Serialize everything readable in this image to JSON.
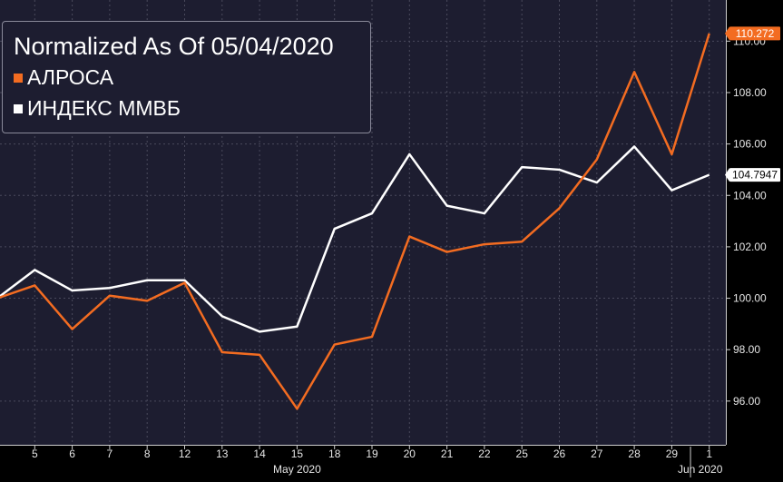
{
  "chart_data": {
    "type": "line",
    "title": "Normalized As Of 05/04/2020",
    "x": [
      "4",
      "5",
      "6",
      "7",
      "8",
      "12",
      "13",
      "14",
      "15",
      "18",
      "19",
      "20",
      "21",
      "22",
      "25",
      "26",
      "27",
      "28",
      "29",
      "1"
    ],
    "x_tick_labels": [
      "5",
      "6",
      "7",
      "8",
      "12",
      "13",
      "14",
      "15",
      "18",
      "19",
      "20",
      "21",
      "22",
      "25",
      "26",
      "27",
      "28",
      "29",
      "1"
    ],
    "month_labels": [
      "May 2020",
      "Jun 2020"
    ],
    "ylim": [
      94.3,
      111.6
    ],
    "y_ticks": [
      "96.00",
      "98.00",
      "100.00",
      "102.00",
      "104.00",
      "106.00",
      "108.00",
      "110.00"
    ],
    "grid": true,
    "legend_position": "top-left",
    "series": [
      {
        "name": "АЛРОСА",
        "color": "#f36c21",
        "last_value_label": "110.272",
        "values": [
          100.0,
          100.5,
          98.8,
          100.1,
          99.9,
          100.6,
          97.9,
          97.8,
          95.7,
          98.2,
          98.5,
          102.4,
          101.8,
          102.1,
          102.2,
          103.5,
          105.4,
          108.8,
          105.6,
          110.3
        ]
      },
      {
        "name": "ИНДЕКС ММВБ",
        "color": "#ffffff",
        "last_value_label": "104.7947",
        "values": [
          100.0,
          101.1,
          100.3,
          100.4,
          100.7,
          100.7,
          99.3,
          98.7,
          98.9,
          102.7,
          103.3,
          105.6,
          103.6,
          103.3,
          105.1,
          105.0,
          104.5,
          105.9,
          104.2,
          104.8
        ]
      }
    ]
  }
}
